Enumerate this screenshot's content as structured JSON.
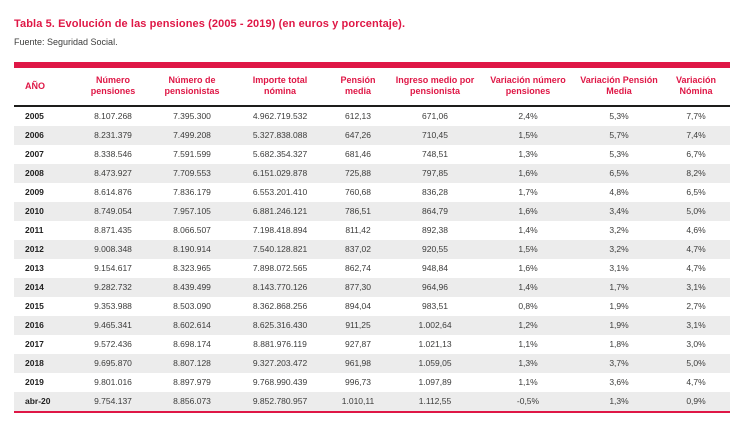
{
  "title": "Tabla 5. Evolución de las pensiones (2005 - 2019) (en euros y porcentaje).",
  "source": "Fuente: Seguridad Social.",
  "colors": {
    "accent_red": "#DF1746",
    "header_rule_dark": "#1d1d1b",
    "row_alt_bg": "#ececec",
    "body_text": "#3c3c3b"
  },
  "chart_data": {
    "type": "table",
    "columns": [
      "AÑO",
      "Número pensiones",
      "Número de pensionistas",
      "Importe total nómina",
      "Pensión media",
      "Ingreso medio por pensionista",
      "Variación número pensiones",
      "Variación Pensión Media",
      "Variación Nómina"
    ],
    "rows": [
      {
        "year": "2005",
        "values": [
          "8.107.268",
          "7.395.300",
          "4.962.719.532",
          "612,13",
          "671,06",
          "2,4%",
          "5,3%",
          "7,7%"
        ]
      },
      {
        "year": "2006",
        "values": [
          "8.231.379",
          "7.499.208",
          "5.327.838.088",
          "647,26",
          "710,45",
          "1,5%",
          "5,7%",
          "7,4%"
        ]
      },
      {
        "year": "2007",
        "values": [
          "8.338.546",
          "7.591.599",
          "5.682.354.327",
          "681,46",
          "748,51",
          "1,3%",
          "5,3%",
          "6,7%"
        ]
      },
      {
        "year": "2008",
        "values": [
          "8.473.927",
          "7.709.553",
          "6.151.029.878",
          "725,88",
          "797,85",
          "1,6%",
          "6,5%",
          "8,2%"
        ]
      },
      {
        "year": "2009",
        "values": [
          "8.614.876",
          "7.836.179",
          "6.553.201.410",
          "760,68",
          "836,28",
          "1,7%",
          "4,8%",
          "6,5%"
        ]
      },
      {
        "year": "2010",
        "values": [
          "8.749.054",
          "7.957.105",
          "6.881.246.121",
          "786,51",
          "864,79",
          "1,6%",
          "3,4%",
          "5,0%"
        ]
      },
      {
        "year": "2011",
        "values": [
          "8.871.435",
          "8.066.507",
          "7.198.418.894",
          "811,42",
          "892,38",
          "1,4%",
          "3,2%",
          "4,6%"
        ]
      },
      {
        "year": "2012",
        "values": [
          "9.008.348",
          "8.190.914",
          "7.540.128.821",
          "837,02",
          "920,55",
          "1,5%",
          "3,2%",
          "4,7%"
        ]
      },
      {
        "year": "2013",
        "values": [
          "9.154.617",
          "8.323.965",
          "7.898.072.565",
          "862,74",
          "948,84",
          "1,6%",
          "3,1%",
          "4,7%"
        ]
      },
      {
        "year": "2014",
        "values": [
          "9.282.732",
          "8.439.499",
          "8.143.770.126",
          "877,30",
          "964,96",
          "1,4%",
          "1,7%",
          "3,1%"
        ]
      },
      {
        "year": "2015",
        "values": [
          "9.353.988",
          "8.503.090",
          "8.362.868.256",
          "894,04",
          "983,51",
          "0,8%",
          "1,9%",
          "2,7%"
        ]
      },
      {
        "year": "2016",
        "values": [
          "9.465.341",
          "8.602.614",
          "8.625.316.430",
          "911,25",
          "1.002,64",
          "1,2%",
          "1,9%",
          "3,1%"
        ]
      },
      {
        "year": "2017",
        "values": [
          "9.572.436",
          "8.698.174",
          "8.881.976.119",
          "927,87",
          "1.021,13",
          "1,1%",
          "1,8%",
          "3,0%"
        ]
      },
      {
        "year": "2018",
        "values": [
          "9.695.870",
          "8.807.128",
          "9.327.203.472",
          "961,98",
          "1.059,05",
          "1,3%",
          "3,7%",
          "5,0%"
        ]
      },
      {
        "year": "2019",
        "values": [
          "9.801.016",
          "8.897.979",
          "9.768.990.439",
          "996,73",
          "1.097,89",
          "1,1%",
          "3,6%",
          "4,7%"
        ]
      },
      {
        "year": "abr-20",
        "values": [
          "9.754.137",
          "8.856.073",
          "9.852.780.957",
          "1.010,11",
          "1.112,55",
          "-0,5%",
          "1,3%",
          "0,9%"
        ]
      }
    ]
  }
}
